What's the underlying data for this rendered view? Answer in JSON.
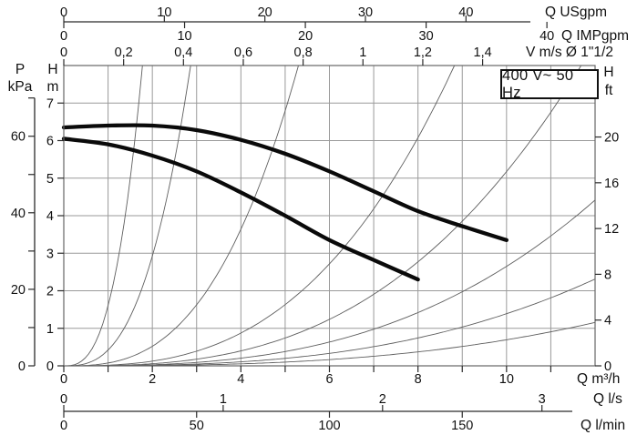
{
  "chart_data": {
    "type": "line",
    "title_box": "400 V~ 50 Hz",
    "q_range_m3h": [
      0,
      12
    ],
    "h_range_m": [
      0,
      8
    ],
    "grid": {
      "x_step_m3h": 1,
      "y_step_m": 1,
      "color": "#9a9a9a"
    },
    "colors": {
      "pump_curve": "#0a0a0a",
      "aux_curve": "#5e5e5e",
      "axis": "#2a2a2a",
      "text": "#111111"
    },
    "x_axes": {
      "usgpm": {
        "title": "Q USgpm",
        "per_unit_m3h": 0.2271,
        "ticks": [
          0,
          10,
          20,
          30,
          40
        ],
        "labels": [
          "0",
          "10",
          "20",
          "30",
          "40"
        ]
      },
      "impgpm": {
        "title": "Q IMPgpm",
        "per_unit_m3h": 0.2728,
        "ticks": [
          0,
          10,
          20,
          30,
          40
        ],
        "labels": [
          "0",
          "10",
          "20",
          "30",
          "40"
        ]
      },
      "v_ms": {
        "title": "V m/s Ø 1\"1/2",
        "per_unit_m3h": 6.757,
        "ticks": [
          0,
          0.2,
          0.4,
          0.6,
          0.8,
          1,
          1.2,
          1.4
        ],
        "labels": [
          "0",
          "0,2",
          "0,4",
          "0,6",
          "0,8",
          "1",
          "1,2",
          "1,4"
        ]
      },
      "m3h": {
        "title": "Q m³/h",
        "per_unit_m3h": 1,
        "ticks": [
          0,
          1,
          2,
          3,
          4,
          5,
          6,
          7,
          8,
          9,
          10,
          11
        ],
        "labels": [
          "0",
          "",
          "2",
          "",
          "4",
          "",
          "6",
          "",
          "8",
          "",
          "10",
          ""
        ]
      },
      "ls": {
        "title": "Q l/s",
        "per_unit_m3h": 3.6,
        "ticks": [
          0,
          1,
          2,
          3
        ],
        "labels": [
          "0",
          "1",
          "2",
          "3"
        ]
      },
      "lmin": {
        "title": "Q l/min",
        "per_unit_m3h": 0.06,
        "ticks": [
          0,
          50,
          100,
          150
        ],
        "labels": [
          "0",
          "50",
          "100",
          "150"
        ]
      }
    },
    "y_axes": {
      "kpa": {
        "title_lines": [
          "P",
          "kPa"
        ],
        "per_unit_m": 0.10194,
        "ticks": [
          0,
          10,
          20,
          30,
          40,
          50,
          60,
          70
        ],
        "labels": [
          "0",
          "",
          "20",
          "",
          "40",
          "",
          "60",
          ""
        ]
      },
      "hm": {
        "title_lines": [
          "H",
          "m"
        ],
        "per_unit_m": 1,
        "ticks": [
          0,
          1,
          2,
          3,
          4,
          5,
          6,
          7
        ],
        "labels": [
          "0",
          "1",
          "2",
          "3",
          "4",
          "5",
          "6",
          "7"
        ]
      },
      "hft": {
        "title_lines": [
          "H",
          "ft"
        ],
        "per_unit_m": 0.3048,
        "ticks": [
          0,
          4,
          8,
          12,
          16,
          20
        ],
        "labels": [
          "0",
          "4",
          "8",
          "12",
          "16",
          "20"
        ]
      }
    },
    "series": [
      {
        "name": "pump-curve-high",
        "points_q_h": [
          [
            0,
            6.35
          ],
          [
            1,
            6.4
          ],
          [
            2,
            6.4
          ],
          [
            3,
            6.28
          ],
          [
            4,
            6.02
          ],
          [
            5,
            5.65
          ],
          [
            6,
            5.18
          ],
          [
            7,
            4.65
          ],
          [
            8,
            4.12
          ],
          [
            9,
            3.72
          ],
          [
            10,
            3.35
          ]
        ]
      },
      {
        "name": "pump-curve-low",
        "points_q_h": [
          [
            0,
            6.05
          ],
          [
            1,
            5.9
          ],
          [
            2,
            5.6
          ],
          [
            3,
            5.18
          ],
          [
            4,
            4.62
          ],
          [
            5,
            4.0
          ],
          [
            6,
            3.35
          ],
          [
            7,
            2.82
          ],
          [
            8,
            2.3
          ]
        ]
      }
    ],
    "aux_curves": {
      "model": "h = k * q^e",
      "exponent": 2.8,
      "k_values": [
        1.6,
        0.42,
        0.075,
        0.018,
        0.0082,
        0.0042,
        0.0022,
        0.0011
      ]
    }
  }
}
